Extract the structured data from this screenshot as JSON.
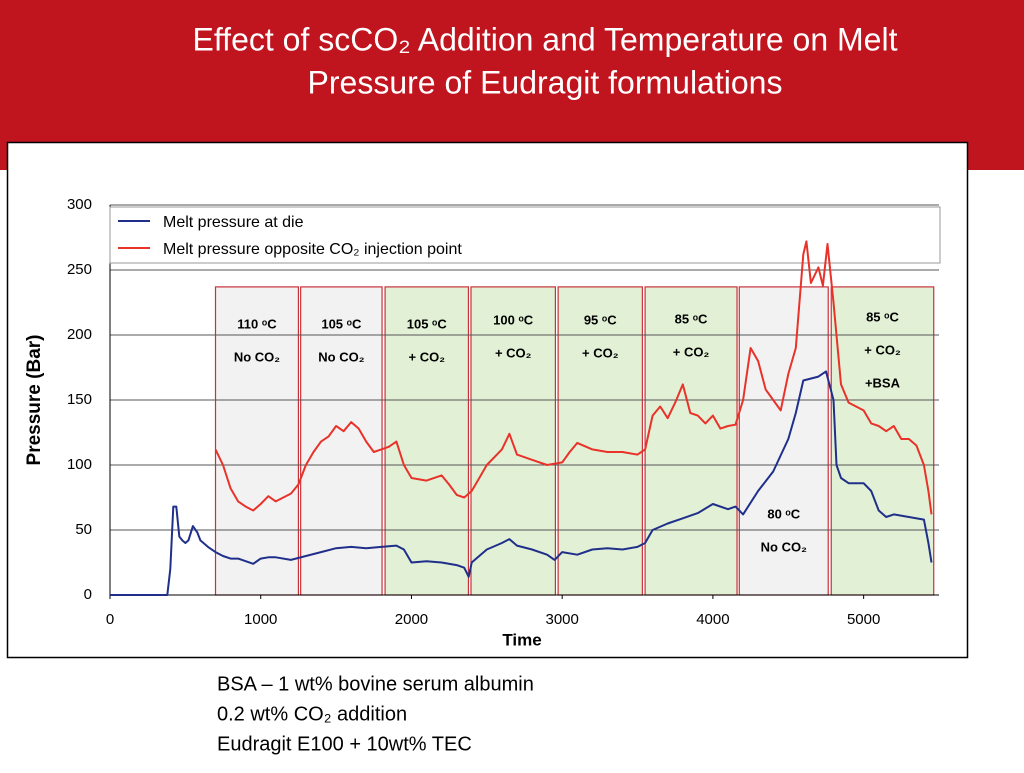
{
  "chart_data": {
    "type": "line",
    "title": [
      "Effect of scCO₂ Addition and Temperature on Melt",
      "Pressure of  Eudragit  formulations"
    ],
    "x_label": "Time",
    "y_label": "Pressure (Bar)",
    "xlim": [
      0,
      5500
    ],
    "xticks": [
      0,
      1000,
      2000,
      3000,
      4000,
      5000
    ],
    "ylim": [
      0,
      300
    ],
    "yticks": [
      0,
      50,
      100,
      150,
      200,
      250,
      300
    ],
    "grid": true,
    "legend": "top",
    "series": [
      {
        "name": "Melt pressure at die",
        "color": "#1f2f8a",
        "x": [
          0,
          380,
          400,
          420,
          440,
          460,
          480,
          500,
          520,
          550,
          580,
          600,
          650,
          700,
          750,
          800,
          850,
          900,
          950,
          1000,
          1050,
          1100,
          1200,
          1300,
          1400,
          1500,
          1600,
          1700,
          1800,
          1900,
          1950,
          2000,
          2100,
          2200,
          2300,
          2350,
          2380,
          2400,
          2500,
          2600,
          2650,
          2700,
          2800,
          2900,
          2950,
          3000,
          3100,
          3200,
          3300,
          3400,
          3500,
          3550,
          3600,
          3700,
          3800,
          3900,
          4000,
          4100,
          4150,
          4200,
          4300,
          4400,
          4500,
          4550,
          4600,
          4700,
          4750,
          4800,
          4820,
          4850,
          4900,
          5000,
          5050,
          5100,
          5150,
          5200,
          5300,
          5400,
          5430,
          5450
        ],
        "values": [
          0,
          0,
          20,
          68,
          68,
          45,
          42,
          40,
          42,
          53,
          48,
          42,
          37,
          33,
          30,
          28,
          28,
          26,
          24,
          28,
          29,
          29,
          27,
          30,
          33,
          36,
          37,
          36,
          37,
          38,
          35,
          25,
          26,
          25,
          23,
          21,
          14,
          25,
          35,
          40,
          43,
          38,
          35,
          31,
          27,
          33,
          31,
          35,
          36,
          35,
          37,
          40,
          50,
          55,
          59,
          63,
          70,
          66,
          68,
          62,
          80,
          95,
          120,
          140,
          165,
          168,
          172,
          150,
          100,
          90,
          86,
          86,
          80,
          65,
          60,
          62,
          60,
          58,
          40,
          25
        ]
      },
      {
        "name": "Melt pressure opposite CO₂ injection point",
        "color": "#e8322a",
        "x": [
          700,
          750,
          800,
          850,
          900,
          950,
          1000,
          1050,
          1100,
          1150,
          1200,
          1250,
          1300,
          1350,
          1400,
          1450,
          1500,
          1550,
          1600,
          1650,
          1700,
          1750,
          1800,
          1850,
          1900,
          1950,
          2000,
          2100,
          2200,
          2250,
          2300,
          2350,
          2400,
          2450,
          2500,
          2600,
          2650,
          2700,
          2800,
          2900,
          3000,
          3050,
          3100,
          3200,
          3300,
          3400,
          3500,
          3550,
          3600,
          3650,
          3700,
          3750,
          3800,
          3850,
          3900,
          3950,
          4000,
          4050,
          4100,
          4150,
          4200,
          4250,
          4300,
          4350,
          4400,
          4450,
          4500,
          4550,
          4600,
          4620,
          4650,
          4700,
          4730,
          4760,
          4800,
          4850,
          4900,
          5000,
          5050,
          5100,
          5150,
          5200,
          5250,
          5300,
          5350,
          5400,
          5430,
          5450
        ],
        "values": [
          112,
          100,
          82,
          72,
          68,
          65,
          70,
          76,
          72,
          75,
          78,
          85,
          100,
          110,
          118,
          122,
          130,
          126,
          133,
          128,
          118,
          110,
          112,
          114,
          118,
          100,
          90,
          88,
          92,
          85,
          77,
          75,
          80,
          90,
          100,
          112,
          124,
          108,
          104,
          100,
          102,
          110,
          117,
          112,
          110,
          110,
          108,
          112,
          138,
          145,
          136,
          148,
          162,
          140,
          138,
          132,
          138,
          128,
          130,
          131,
          150,
          190,
          180,
          158,
          150,
          142,
          170,
          190,
          262,
          272,
          240,
          252,
          238,
          270,
          225,
          162,
          148,
          142,
          132,
          130,
          126,
          130,
          120,
          120,
          115,
          100,
          80,
          62
        ]
      }
    ],
    "regions": [
      {
        "x": [
          700,
          1250
        ],
        "top": 237,
        "color": "#f2f2f2",
        "lines": [
          "110 ᵒC",
          "No CO₂"
        ]
      },
      {
        "x": [
          1265,
          1805
        ],
        "top": 237,
        "color": "#f2f2f2",
        "lines": [
          "105 ᵒC",
          "No CO₂"
        ]
      },
      {
        "x": [
          1825,
          2378
        ],
        "top": 237,
        "color": "#e2f1d6",
        "lines": [
          "105 ᵒC",
          "+ CO₂"
        ]
      },
      {
        "x": [
          2395,
          2955
        ],
        "top": 237,
        "color": "#e2f1d6",
        "lines": [
          "100 ᵒC",
          "+ CO₂"
        ]
      },
      {
        "x": [
          2973,
          3532
        ],
        "top": 237,
        "color": "#e2f1d6",
        "lines": [
          "95 ᵒC",
          "+ CO₂"
        ]
      },
      {
        "x": [
          3550,
          4160
        ],
        "top": 237,
        "color": "#e2f1d6",
        "lines": [
          "85 ᵒC",
          "+ CO₂"
        ]
      },
      {
        "x": [
          4175,
          4765
        ],
        "top": 237,
        "color": "#f2f2f2",
        "lines": [
          "80 ᵒC",
          "No CO₂"
        ]
      },
      {
        "x": [
          4785,
          5465
        ],
        "top": 237,
        "color": "#e2f1d6",
        "lines": [
          "85 ᵒC",
          "+ CO₂",
          "+BSA"
        ]
      }
    ],
    "notes": [
      "BSA – 1 wt% bovine serum albumin",
      "0.2 wt% CO₂ addition",
      "Eudragit E100 + 10wt% TEC"
    ]
  }
}
